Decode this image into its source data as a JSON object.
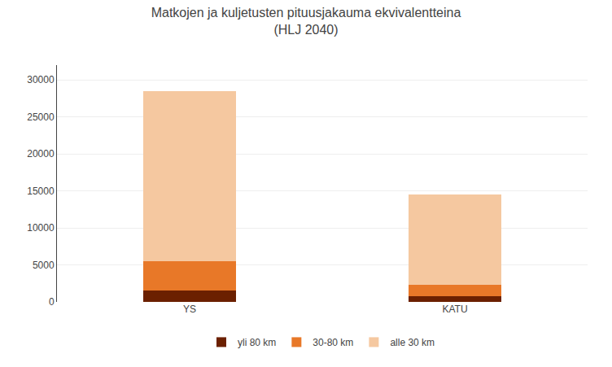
{
  "chart_data": {
    "type": "bar",
    "title": "Matkojen ja kuljetusten pituusjakauma ekvivalentteina\n(HLJ 2040)",
    "categories": [
      "YS",
      "KATU"
    ],
    "series": [
      {
        "name": "yli 80 km",
        "color": "#6B2000",
        "values": [
          1500,
          800
        ]
      },
      {
        "name": "30-80 km",
        "color": "#E87828",
        "values": [
          4000,
          1500
        ]
      },
      {
        "name": "alle 30 km",
        "color": "#F5C8A0",
        "values": [
          23000,
          12200
        ]
      }
    ],
    "ylim": [
      0,
      32000
    ],
    "yticks": [
      0,
      5000,
      10000,
      15000,
      20000,
      25000,
      30000
    ],
    "grid": true,
    "stacked": true,
    "legend": "bottom"
  }
}
